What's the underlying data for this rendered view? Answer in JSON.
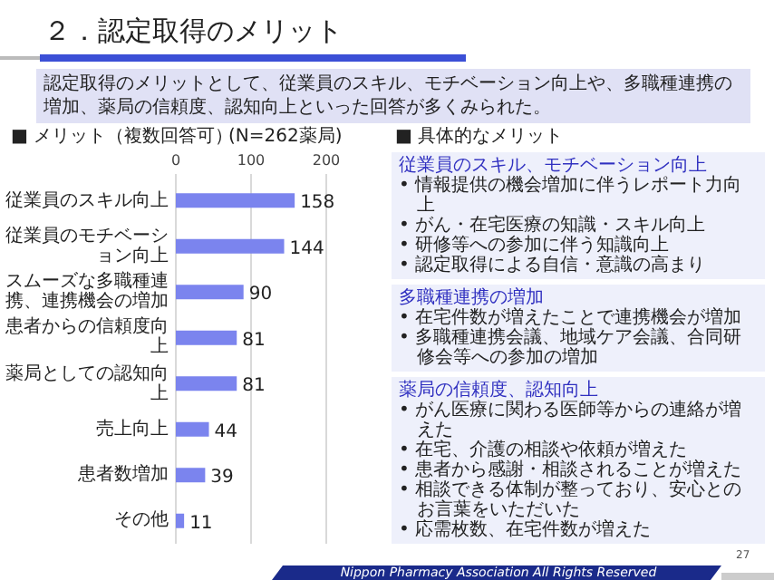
{
  "chart_data": {
    "type": "bar",
    "orientation": "horizontal",
    "title": "２．認定取得のメリット",
    "subtitle": "認定取得のメリットとして、従業員のスキル、モチベーション向上や、多職種連携の増加、薬局の信頼度、認知向上といった回答が多くみられた。",
    "categories": [
      "従業員のスキル向上",
      "従業員のモチベーション向上",
      "スムーズな多職種連携、連携機会の増加",
      "患者からの信頼度向上",
      "薬局としての認知向上",
      "売上向上",
      "患者数増加",
      "その他"
    ],
    "values": [
      158,
      144,
      90,
      81,
      81,
      44,
      39,
      11
    ],
    "color": "#7b84ee",
    "xlim": [
      0,
      200
    ],
    "xticks": [
      0,
      100,
      200
    ],
    "grid": "x",
    "data_labels": true,
    "annotations": [
      "■ メリット（複数回答可）",
      "(N=262薬局)",
      "■ 具体的なメリット",
      "従業員のスキル、モチベーション向上",
      "• 情報提供の機会増加に伴うレポート力向上",
      "• がん・在宅医療の知識・スキル向上",
      "• 研修等への参加に伴う知識向上",
      "• 認定取得による自信・意識の高まり",
      "多職種連携の増加",
      "• 在宅件数が増えたことで連携機会が増加",
      "• 多職種連携会議、地域ケア会議、合同研修会等への参加の増加",
      "薬局の信頼度、認知向上",
      "• がん医療に関わる医師等からの連絡が増えた",
      "• 在宅、介護の相談や依頼が増えた",
      "• 患者から感謝・相談されることが増えた",
      "• 相談できる体制が整っており、安心とのお言葉をいただいた",
      "• 応需枚数、在宅件数が増えた",
      "Nippon Pharmacy Association All Rights Reserved",
      "27"
    ]
  }
}
